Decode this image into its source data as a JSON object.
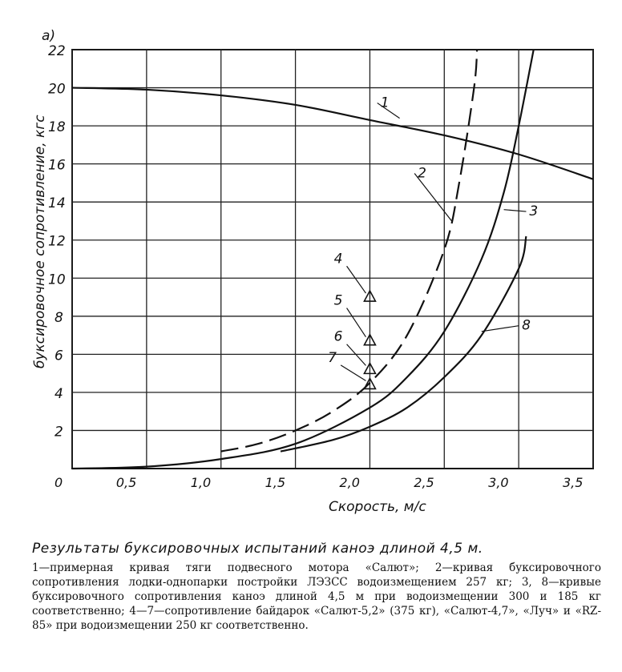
{
  "chart_data": {
    "type": "line",
    "panel_label": "а)",
    "title": "",
    "xlabel": "Скорость, м/с",
    "ylabel": "буксировочное сопротивление, кгс",
    "xlim": [
      0,
      3.5
    ],
    "ylim": [
      0,
      22
    ],
    "grid": true,
    "x_ticks": [
      "0",
      "0,5",
      "1,0",
      "1,5",
      "2,0",
      "2,5",
      "3,0",
      "3,5"
    ],
    "x_tick_values": [
      0,
      0.5,
      1.0,
      1.5,
      2.0,
      2.5,
      3.0,
      3.5
    ],
    "y_ticks": [
      "2",
      "4",
      "6",
      "8",
      "10",
      "12",
      "14",
      "16",
      "18",
      "20",
      "22"
    ],
    "y_tick_values": [
      2,
      4,
      6,
      8,
      10,
      12,
      14,
      16,
      18,
      20,
      22
    ],
    "series": [
      {
        "name": "1",
        "style": "solid",
        "x": [
          0,
          0.5,
          1.0,
          1.5,
          2.0,
          2.5,
          3.0,
          3.5
        ],
        "y": [
          20,
          19.9,
          19.6,
          19.1,
          18.3,
          17.5,
          16.5,
          15.2
        ]
      },
      {
        "name": "2",
        "style": "dashed",
        "x": [
          1.0,
          1.25,
          1.5,
          1.75,
          2.0,
          2.25,
          2.5,
          2.6,
          2.7,
          2.72
        ],
        "y": [
          0.9,
          1.3,
          2.0,
          3.0,
          4.5,
          7.0,
          11.5,
          15,
          20,
          22
        ]
      },
      {
        "name": "3",
        "style": "solid",
        "x": [
          0,
          0.5,
          1.0,
          1.5,
          2.0,
          2.25,
          2.5,
          2.75,
          2.9,
          3.0,
          3.1
        ],
        "y": [
          0,
          0.1,
          0.5,
          1.3,
          3.2,
          4.8,
          7.2,
          11.0,
          14.5,
          18.0,
          22
        ]
      },
      {
        "name": "8",
        "style": "solid",
        "x": [
          1.4,
          1.75,
          2.0,
          2.25,
          2.5,
          2.75,
          3.0,
          3.05
        ],
        "y": [
          0.9,
          1.5,
          2.2,
          3.2,
          4.8,
          7.0,
          10.5,
          12.2
        ]
      }
    ],
    "points": [
      {
        "name": "4",
        "x": 2.0,
        "y": 9.0
      },
      {
        "name": "5",
        "x": 2.0,
        "y": 6.7
      },
      {
        "name": "6",
        "x": 2.0,
        "y": 5.2
      },
      {
        "name": "7",
        "x": 2.0,
        "y": 4.4
      }
    ]
  },
  "caption": {
    "title": "Результаты буксировочных испытаний каноэ длиной 4,5 м.",
    "body": "1—примерная кривая тяги подвесного мотора «Салют»; 2—кривая буксировочного сопротивления лодки-однопарки постройки ЛЭЗСС водоизмещением 257 кг; 3, 8—кривые буксировочного сопротивления каноэ длиной 4,5 м при водоизмещении 300 и 185 кг соответственно; 4—7—сопротивление байдарок «Салют-5,2» (375 кг), «Салют-4,7», «Луч» и «RZ-85» при водоизмещении 250 кг соответственно."
  }
}
